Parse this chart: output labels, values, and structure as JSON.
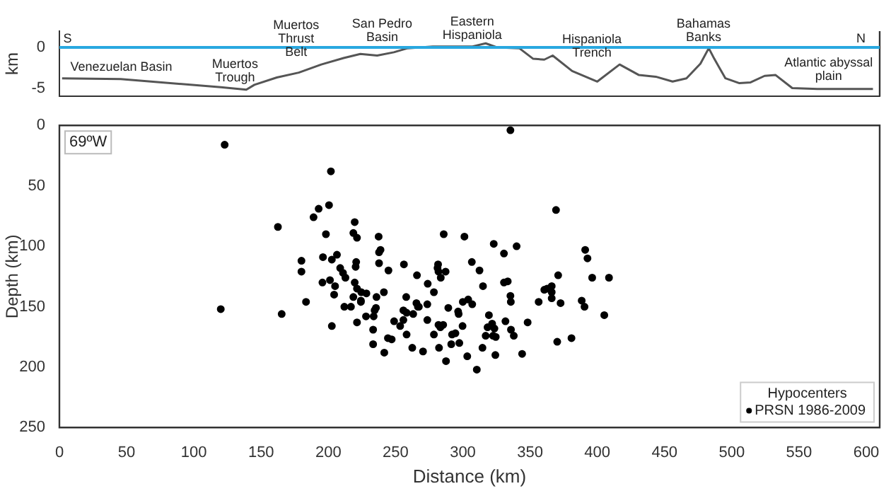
{
  "chart_data": [
    {
      "type": "line",
      "ylabel": "km",
      "color": "#555555",
      "marker": "none",
      "xlim": [
        0,
        610
      ],
      "ylim": [
        -6,
        2
      ],
      "yticks": [
        -5,
        0
      ],
      "tick_labels": "y",
      "grid": false,
      "x": [
        2,
        45.6,
        120,
        139,
        145,
        161.7,
        178,
        194.8,
        211.4,
        223.8,
        236.3,
        248.7,
        259,
        277.7,
        306.7,
        317,
        325.4,
        342,
        352.3,
        360.6,
        366.8,
        381.3,
        400,
        416.6,
        431,
        443.5,
        456,
        466.3,
        476.7,
        482.9,
        487,
        495.3,
        505.7,
        514,
        524.4,
        532.6,
        545,
        563.7,
        605
      ],
      "values": [
        -3.8,
        -3.9,
        -4.9,
        -5.2,
        -4.6,
        -3.7,
        -3.1,
        -2.1,
        -1.3,
        -0.8,
        -1.0,
        -0.6,
        -0.1,
        0.1,
        0.1,
        0.5,
        0,
        -0.1,
        -1.4,
        -1.5,
        -1,
        -2.9,
        -4.2,
        -2.1,
        -3.4,
        -3.6,
        -4.2,
        -3.8,
        -2.0,
        -0.1,
        -1.4,
        -3.8,
        -4.4,
        -4.3,
        -3.5,
        -3.4,
        -5.0,
        -5.1,
        -5.1
      ],
      "ref_lines": [
        {
          "axis": "y",
          "value": 0,
          "color": "#29a8e0"
        }
      ],
      "annotations": [
        "S",
        "N",
        "Venezuelan Basin",
        "Muertos\nTrough",
        "Muertos\nThrust\nBelt",
        "San Pedro\nBasin",
        "Eastern\nHispaniola",
        "Hispaniola\nTrench",
        "Bahamas\nBanks",
        "Atlantic abyssal\nplain"
      ]
    },
    {
      "type": "scatter",
      "xlabel": "Distance (km)",
      "ylabel": "Depth (km)",
      "xlim": [
        0,
        610
      ],
      "ylim": [
        250,
        0
      ],
      "xticks": [
        0,
        50,
        100,
        150,
        200,
        250,
        300,
        350,
        400,
        450,
        500,
        550,
        600
      ],
      "yticks": [
        0,
        50,
        100,
        150,
        200,
        250
      ],
      "grid": false,
      "marker": "circle",
      "legend": "bottom right",
      "legend_title": "Hypocenters",
      "annotations": [
        "69ºW"
      ],
      "series": [
        {
          "name": "PRSN 1986-2009",
          "color": "#000000",
          "x": [
            122.9,
            201.9,
            200.5,
            192.8,
            189,
            162.5,
            198.2,
            219.6,
            218.6,
            221.3,
            237.4,
            238.8,
            237.7,
            237.7,
            180,
            180,
            196,
            206.4,
            202.6,
            208.8,
            210.9,
            212.7,
            220.7,
            220.3,
            244.7,
            256.2,
            265.9,
            273.9,
            281.6,
            281.2,
            281.9,
            283.6,
            287.2,
            285.8,
            195.6,
            201.2,
            205,
            219.6,
            221.3,
            204.3,
            224.5,
            228.3,
            218.6,
            224.2,
            224.2,
            241.3,
            235.8,
            257.9,
            183.4,
            211.9,
            216.8,
            235.4,
            234.4,
            233.7,
            228,
            255.8,
            258.2,
            263.1,
            265.5,
            266.6,
            267.3,
            273.6,
            278.5,
            289.2,
            120,
            165.3,
            202.6,
            221.3,
            248.9,
            255.8,
            253.4,
            258.2,
            273.6,
            278.5,
            281.9,
            283.3,
            285.4,
            294.5,
            233.3,
            244.3,
            247.1,
            233.3,
            241.6,
            262.4,
            270.4,
            282.3,
            291.4,
            287.5,
            335.4,
            369.3,
            301.2,
            323,
            340,
            330.6,
            306.7,
            312.4,
            391,
            392.7,
            396.2,
            408.7,
            370.9,
            366.1,
            360.6,
            362.7,
            366.1,
            366.1,
            372.7,
            356.4,
            315,
            330.6,
            333.4,
            335.4,
            335.7,
            300,
            304,
            307,
            388.4,
            390.5,
            405.2,
            296.5,
            296.9,
            299.8,
            319.4,
            318.4,
            321.8,
            323.5,
            324.5,
            322.5,
            317,
            331.7,
            335.8,
            337.9,
            348.2,
            292,
            297.4,
            314.6,
            303.3,
            324.2,
            310.4,
            344.1,
            370.2,
            380.8
          ],
          "values": [
            16,
            38,
            66,
            69,
            76,
            84,
            90,
            80,
            89,
            93,
            92,
            103,
            105,
            114,
            112,
            121,
            109,
            107,
            111,
            118,
            122,
            126,
            113,
            117,
            120,
            115,
            124,
            131,
            115,
            118,
            121,
            126,
            121,
            90,
            130,
            128,
            133,
            130,
            135,
            140,
            138,
            139,
            142,
            145,
            146,
            138,
            142,
            142,
            146,
            150,
            150,
            151,
            153,
            158,
            158,
            153,
            155,
            156,
            147,
            150,
            150,
            148,
            138,
            151,
            152,
            156,
            166,
            163,
            162,
            161,
            166,
            173,
            161,
            173,
            165,
            167,
            165,
            172,
            169,
            176,
            177,
            181,
            188,
            184,
            187,
            184,
            181,
            195,
            4,
            70,
            92,
            98,
            100,
            106,
            113,
            120,
            103,
            110,
            126,
            126,
            124,
            133,
            136,
            135,
            138,
            143,
            147,
            146,
            133,
            130,
            129,
            141,
            146,
            146,
            144,
            148,
            145,
            150,
            157,
            154,
            156,
            166,
            157,
            167,
            164,
            168,
            175,
            174,
            174,
            162,
            169,
            174,
            163,
            173,
            180,
            184,
            191,
            190,
            202,
            189,
            179,
            176
          ]
        }
      ]
    }
  ]
}
